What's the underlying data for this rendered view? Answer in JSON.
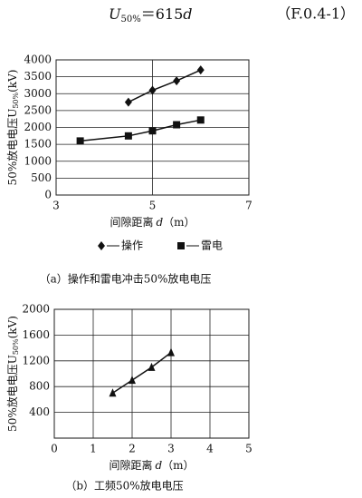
{
  "equation": {
    "symbol": "U",
    "subscript": "50%",
    "rhs": "＝615",
    "variable": "d",
    "number": "（F.0.4-1）"
  },
  "chart_data": [
    {
      "type": "scatter",
      "caption": "（a）操作和雷电冲击50%放电电压",
      "y_label": "50%放电电压U",
      "y_label_sub": "50%",
      "y_label_unit": "(kV)",
      "x_label": "间隙距离",
      "x_label_var": "d",
      "x_label_unit": "（m）",
      "xlim": [
        3,
        7
      ],
      "xticks": [
        3,
        5,
        7
      ],
      "ylim": [
        0,
        4000
      ],
      "yticks": [
        0,
        500,
        1000,
        1500,
        2000,
        2500,
        3000,
        3500,
        4000
      ],
      "grid": true,
      "series": [
        {
          "name": "操作",
          "marker": "diamond",
          "color": "#111111",
          "x": [
            4.5,
            5,
            5.5,
            6
          ],
          "values": [
            2750,
            3100,
            3380,
            3700
          ]
        },
        {
          "name": "雷电",
          "marker": "square",
          "color": "#111111",
          "x": [
            3.5,
            4.5,
            5,
            5.5,
            6
          ],
          "values": [
            1600,
            1750,
            1900,
            2080,
            2220
          ]
        }
      ]
    },
    {
      "type": "scatter",
      "caption": "（b）工频50%放电电压",
      "y_label": "50%放电电压U",
      "y_label_sub": "50%",
      "y_label_unit": "(kV)",
      "x_label": "间隙距离",
      "x_label_var": "d",
      "x_label_unit": "（m）",
      "xlim": [
        0,
        5
      ],
      "xticks": [
        0,
        1,
        2,
        3,
        4,
        5
      ],
      "ylim": [
        0,
        2000
      ],
      "yticks": [
        400,
        800,
        1200,
        1600,
        2000
      ],
      "grid": true,
      "series": [
        {
          "marker": "triangle",
          "color": "#111111",
          "x": [
            1.5,
            2,
            2.5,
            3
          ],
          "values": [
            700,
            900,
            1100,
            1330
          ]
        }
      ]
    }
  ]
}
